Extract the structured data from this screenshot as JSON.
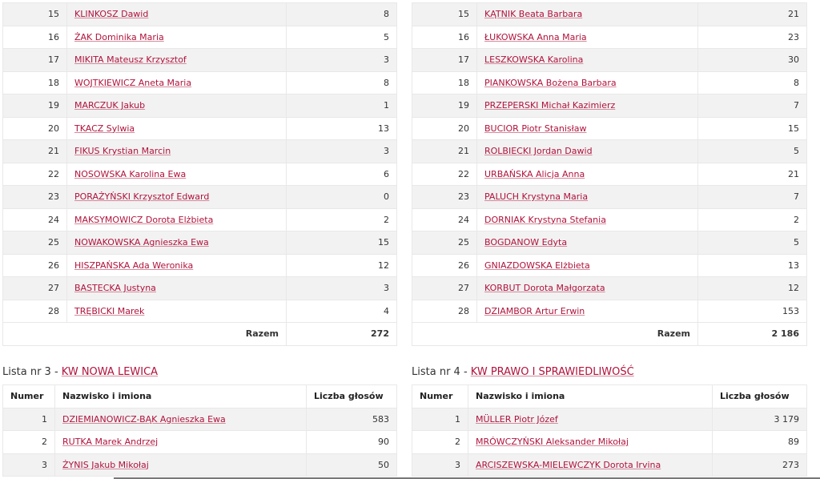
{
  "colors": {
    "link": "#b0123c",
    "stripe": "#f2f2f2"
  },
  "total_label": "Razem",
  "columns": {
    "number": "Numer",
    "name": "Nazwisko i imiona",
    "votes": "Liczba głosów"
  },
  "upper_left": {
    "rows": [
      {
        "n": "15",
        "name": "KLINKOSZ Dawid",
        "votes": "8"
      },
      {
        "n": "16",
        "name": "ŻAK Dominika Maria",
        "votes": "5"
      },
      {
        "n": "17",
        "name": "MIKITA Mateusz Krzysztof",
        "votes": "3"
      },
      {
        "n": "18",
        "name": "WOJTKIEWICZ Aneta Maria",
        "votes": "8"
      },
      {
        "n": "19",
        "name": "MARCZUK Jakub",
        "votes": "1"
      },
      {
        "n": "20",
        "name": "TKACZ Sylwia",
        "votes": "13"
      },
      {
        "n": "21",
        "name": "FIKUS Krystian Marcin",
        "votes": "3"
      },
      {
        "n": "22",
        "name": "NOSOWSKA Karolina Ewa",
        "votes": "6"
      },
      {
        "n": "23",
        "name": "PORAŻYŃSKI Krzysztof Edward",
        "votes": "0"
      },
      {
        "n": "24",
        "name": "MAKSYMOWICZ Dorota Elżbieta",
        "votes": "2"
      },
      {
        "n": "25",
        "name": "NOWAKOWSKA Agnieszka Ewa",
        "votes": "15"
      },
      {
        "n": "26",
        "name": "HISZPAŃSKA Ada Weronika",
        "votes": "12"
      },
      {
        "n": "27",
        "name": "BASTECKA Justyna",
        "votes": "3"
      },
      {
        "n": "28",
        "name": "TRĘBICKI Marek",
        "votes": "4"
      }
    ],
    "total": "272"
  },
  "upper_right": {
    "rows": [
      {
        "n": "15",
        "name": "KĄTNIK Beata Barbara",
        "votes": "21"
      },
      {
        "n": "16",
        "name": "ŁUKOWSKA Anna Maria",
        "votes": "23"
      },
      {
        "n": "17",
        "name": "LESZKOWSKA Karolina",
        "votes": "30"
      },
      {
        "n": "18",
        "name": "PIANKOWSKA Bożena Barbara",
        "votes": "8"
      },
      {
        "n": "19",
        "name": "PRZEPERSKI Michał Kazimierz",
        "votes": "7"
      },
      {
        "n": "20",
        "name": "BUCIOR Piotr Stanisław",
        "votes": "15"
      },
      {
        "n": "21",
        "name": "ROLBIECKI Jordan Dawid",
        "votes": "5"
      },
      {
        "n": "22",
        "name": "URBAŃSKA Alicja Anna",
        "votes": "21"
      },
      {
        "n": "23",
        "name": "PALUCH Krystyna Maria",
        "votes": "7"
      },
      {
        "n": "24",
        "name": "DORNIAK Krystyna Stefania",
        "votes": "2"
      },
      {
        "n": "25",
        "name": "BOGDANOW Edyta",
        "votes": "5"
      },
      {
        "n": "26",
        "name": "GNIAZDOWSKA Elżbieta",
        "votes": "13"
      },
      {
        "n": "27",
        "name": "KORBUT Dorota Małgorzata",
        "votes": "12"
      },
      {
        "n": "28",
        "name": "DZIAMBOR Artur Erwin",
        "votes": "153"
      }
    ],
    "total": "2 186"
  },
  "list3": {
    "prefix": "Lista nr 3 - ",
    "committee": "KW NOWA LEWICA",
    "rows": [
      {
        "n": "1",
        "name": "DZIEMIANOWICZ-BĄK Agnieszka Ewa",
        "votes": "583"
      },
      {
        "n": "2",
        "name": "RUTKA Marek Andrzej",
        "votes": "90"
      },
      {
        "n": "3",
        "name": "ŻYNIS Jakub Mikołaj",
        "votes": "50"
      }
    ]
  },
  "list4": {
    "prefix": "Lista nr 4 - ",
    "committee": "KW PRAWO I SPRAWIEDLIWOŚĆ",
    "rows": [
      {
        "n": "1",
        "name": "MÜLLER Piotr Józef",
        "votes": "3 179"
      },
      {
        "n": "2",
        "name": "MRÓWCZYŃSKI Aleksander Mikołaj",
        "votes": "89"
      },
      {
        "n": "3",
        "name": "ARCISZEWSKA-MIELEWCZYK Dorota Irvina",
        "votes": "273"
      }
    ]
  }
}
